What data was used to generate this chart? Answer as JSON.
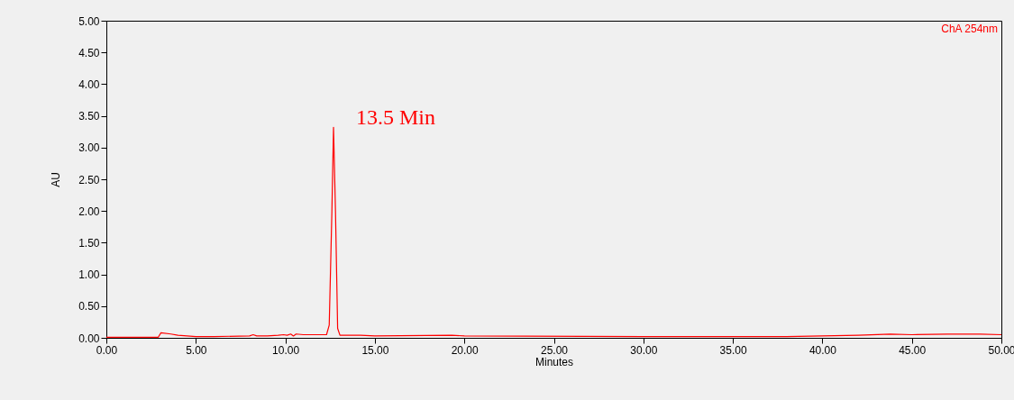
{
  "chart_data": {
    "type": "line",
    "xlabel": "Minutes",
    "ylabel": "AU",
    "x": [
      0,
      2.9,
      3.05,
      3.6,
      4.0,
      5.0,
      6.0,
      8.0,
      8.2,
      8.4,
      9.0,
      9.6,
      9.9,
      10.1,
      10.3,
      10.45,
      10.6,
      11.0,
      12.3,
      12.45,
      12.6,
      12.69,
      12.8,
      12.92,
      13.05,
      14.0,
      14.2,
      15.0,
      19.3,
      20.0,
      30.0,
      38.0,
      42.0,
      43.8,
      45.0,
      47.0,
      48.8,
      50.0
    ],
    "series": [
      {
        "color": "#ff0000",
        "values": [
          0.01,
          0.01,
          0.08,
          0.06,
          0.04,
          0.02,
          0.02,
          0.03,
          0.05,
          0.03,
          0.03,
          0.04,
          0.05,
          0.04,
          0.06,
          0.03,
          0.06,
          0.05,
          0.05,
          0.2,
          2.0,
          3.32,
          2.0,
          0.15,
          0.04,
          0.04,
          0.04,
          0.03,
          0.04,
          0.03,
          0.02,
          0.02,
          0.04,
          0.06,
          0.05,
          0.06,
          0.06,
          0.05
        ]
      }
    ],
    "xlim": [
      0,
      50
    ],
    "ylim": [
      0,
      5
    ],
    "xticks": [
      {
        "value": 0,
        "label": "0.00"
      },
      {
        "value": 5,
        "label": "5.00"
      },
      {
        "value": 10,
        "label": "10.00"
      },
      {
        "value": 15,
        "label": "15.00"
      },
      {
        "value": 20,
        "label": "20.00"
      },
      {
        "value": 25,
        "label": "25.00"
      },
      {
        "value": 30,
        "label": "30.00"
      },
      {
        "value": 35,
        "label": "35.00"
      },
      {
        "value": 40,
        "label": "40.00"
      },
      {
        "value": 45,
        "label": "45.00"
      },
      {
        "value": 50,
        "label": "50.00"
      }
    ],
    "yticks": [
      {
        "value": 0,
        "label": "0.00"
      },
      {
        "value": 0.5,
        "label": "0.50"
      },
      {
        "value": 1,
        "label": "1.00"
      },
      {
        "value": 1.5,
        "label": "1.50"
      },
      {
        "value": 2,
        "label": "2.00"
      },
      {
        "value": 2.5,
        "label": "2.50"
      },
      {
        "value": 3,
        "label": "3.00"
      },
      {
        "value": 3.5,
        "label": "3.50"
      },
      {
        "value": 4,
        "label": "4.00"
      },
      {
        "value": 4.5,
        "label": "4.50"
      },
      {
        "value": 5,
        "label": "5.00"
      }
    ],
    "annotations": [
      {
        "text": "13.5 Min",
        "x": 12.69,
        "y": 3.32
      },
      "ChA 254nm"
    ],
    "grid": false,
    "marker": "none",
    "line_style": "solid"
  }
}
